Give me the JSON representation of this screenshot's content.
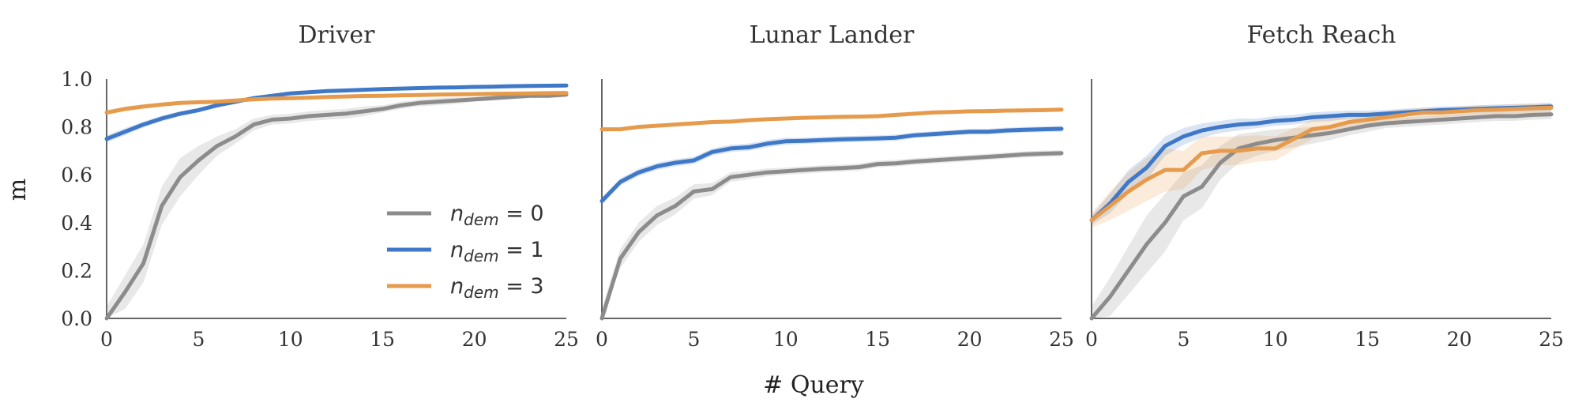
{
  "chart_data": {
    "type": "line",
    "xlabel": "# Query",
    "ylabel": "m",
    "x": [
      0,
      1,
      2,
      3,
      4,
      5,
      6,
      7,
      8,
      9,
      10,
      11,
      12,
      13,
      14,
      15,
      16,
      17,
      18,
      19,
      20,
      21,
      22,
      23,
      24,
      25
    ],
    "xlim": [
      0,
      25
    ],
    "ylim": [
      0,
      1.0
    ],
    "xticks": [
      "0",
      "5",
      "10",
      "15",
      "20",
      "25"
    ],
    "yticks": [
      "0.0",
      "0.2",
      "0.4",
      "0.6",
      "0.8",
      "1.0"
    ],
    "grid": false,
    "legend": {
      "placement": "inside lower-right of first panel",
      "entries": [
        {
          "symbol": "n",
          "subscript": "dem",
          "text": " = 0",
          "color": "#8c8c8c"
        },
        {
          "symbol": "n",
          "subscript": "dem",
          "text": " = 1",
          "color": "#3f78c7"
        },
        {
          "symbol": "n",
          "subscript": "dem",
          "text": " = 3",
          "color": "#e69a4b"
        }
      ]
    },
    "panels": [
      {
        "title": "Driver",
        "series": [
          {
            "name": "n_dem = 0",
            "color": "#8c8c8c",
            "values": [
              0.0,
              0.11,
              0.23,
              0.47,
              0.59,
              0.66,
              0.72,
              0.76,
              0.81,
              0.83,
              0.835,
              0.845,
              0.85,
              0.855,
              0.865,
              0.875,
              0.89,
              0.9,
              0.905,
              0.91,
              0.915,
              0.92,
              0.925,
              0.93,
              0.93,
              0.935
            ],
            "band": [
              0.05,
              0.07,
              0.08,
              0.08,
              0.08,
              0.06,
              0.04,
              0.03,
              0.025,
              0.02,
              0.02,
              0.02,
              0.02,
              0.02,
              0.02,
              0.015,
              0.015,
              0.015,
              0.015,
              0.015,
              0.01,
              0.01,
              0.01,
              0.01,
              0.01,
              0.01
            ]
          },
          {
            "name": "n_dem = 1",
            "color": "#3f78c7",
            "values": [
              0.75,
              0.78,
              0.81,
              0.835,
              0.855,
              0.87,
              0.89,
              0.905,
              0.92,
              0.93,
              0.94,
              0.945,
              0.95,
              0.952,
              0.955,
              0.958,
              0.96,
              0.962,
              0.964,
              0.965,
              0.967,
              0.968,
              0.97,
              0.971,
              0.972,
              0.973
            ],
            "band": [
              0.015,
              0.015,
              0.012,
              0.012,
              0.01,
              0.01,
              0.01,
              0.01,
              0.008,
              0.008,
              0.008,
              0.008,
              0.006,
              0.006,
              0.006,
              0.006,
              0.006,
              0.006,
              0.005,
              0.005,
              0.005,
              0.005,
              0.005,
              0.005,
              0.005,
              0.005
            ]
          },
          {
            "name": "n_dem = 3",
            "color": "#e69a4b",
            "values": [
              0.86,
              0.875,
              0.885,
              0.893,
              0.9,
              0.903,
              0.905,
              0.91,
              0.915,
              0.918,
              0.92,
              0.922,
              0.925,
              0.927,
              0.929,
              0.93,
              0.932,
              0.933,
              0.935,
              0.936,
              0.937,
              0.938,
              0.939,
              0.94,
              0.941,
              0.942
            ],
            "band": [
              0.01,
              0.01,
              0.01,
              0.008,
              0.008,
              0.008,
              0.008,
              0.006,
              0.006,
              0.006,
              0.006,
              0.006,
              0.005,
              0.005,
              0.005,
              0.005,
              0.005,
              0.005,
              0.005,
              0.005,
              0.005,
              0.005,
              0.005,
              0.005,
              0.005,
              0.005
            ]
          }
        ]
      },
      {
        "title": "Lunar Lander",
        "series": [
          {
            "name": "n_dem = 0",
            "color": "#8c8c8c",
            "values": [
              0.0,
              0.25,
              0.36,
              0.43,
              0.47,
              0.53,
              0.54,
              0.59,
              0.6,
              0.61,
              0.615,
              0.62,
              0.625,
              0.628,
              0.632,
              0.645,
              0.648,
              0.655,
              0.66,
              0.665,
              0.67,
              0.675,
              0.68,
              0.685,
              0.688,
              0.69
            ],
            "band": [
              0.04,
              0.04,
              0.04,
              0.04,
              0.035,
              0.03,
              0.025,
              0.02,
              0.018,
              0.016,
              0.015,
              0.015,
              0.015,
              0.015,
              0.015,
              0.014,
              0.014,
              0.014,
              0.014,
              0.014,
              0.013,
              0.013,
              0.013,
              0.013,
              0.013,
              0.013
            ]
          },
          {
            "name": "n_dem = 1",
            "color": "#3f78c7",
            "values": [
              0.49,
              0.57,
              0.61,
              0.635,
              0.65,
              0.66,
              0.695,
              0.71,
              0.715,
              0.73,
              0.74,
              0.742,
              0.745,
              0.748,
              0.75,
              0.752,
              0.755,
              0.765,
              0.77,
              0.775,
              0.78,
              0.78,
              0.785,
              0.788,
              0.79,
              0.792
            ],
            "band": [
              0.015,
              0.015,
              0.015,
              0.015,
              0.015,
              0.015,
              0.015,
              0.015,
              0.015,
              0.015,
              0.015,
              0.013,
              0.013,
              0.013,
              0.013,
              0.013,
              0.013,
              0.012,
              0.012,
              0.012,
              0.012,
              0.012,
              0.012,
              0.012,
              0.012,
              0.012
            ]
          },
          {
            "name": "n_dem = 3",
            "color": "#e69a4b",
            "values": [
              0.79,
              0.79,
              0.8,
              0.805,
              0.81,
              0.815,
              0.82,
              0.822,
              0.828,
              0.832,
              0.835,
              0.838,
              0.84,
              0.842,
              0.843,
              0.845,
              0.85,
              0.855,
              0.86,
              0.862,
              0.865,
              0.866,
              0.868,
              0.869,
              0.87,
              0.872
            ],
            "band": [
              0.008,
              0.008,
              0.008,
              0.008,
              0.008,
              0.008,
              0.008,
              0.008,
              0.008,
              0.008,
              0.008,
              0.008,
              0.008,
              0.008,
              0.008,
              0.008,
              0.008,
              0.008,
              0.008,
              0.008,
              0.008,
              0.008,
              0.008,
              0.008,
              0.008,
              0.008
            ]
          }
        ]
      },
      {
        "title": "Fetch Reach",
        "series": [
          {
            "name": "n_dem = 0",
            "color": "#8c8c8c",
            "values": [
              0.0,
              0.09,
              0.2,
              0.31,
              0.4,
              0.51,
              0.55,
              0.65,
              0.71,
              0.73,
              0.745,
              0.755,
              0.765,
              0.775,
              0.79,
              0.805,
              0.815,
              0.82,
              0.825,
              0.83,
              0.835,
              0.84,
              0.845,
              0.845,
              0.85,
              0.852
            ],
            "band": [
              0.05,
              0.08,
              0.1,
              0.12,
              0.12,
              0.1,
              0.09,
              0.07,
              0.06,
              0.05,
              0.045,
              0.04,
              0.035,
              0.03,
              0.025,
              0.025,
              0.02,
              0.02,
              0.02,
              0.02,
              0.02,
              0.02,
              0.02,
              0.02,
              0.02,
              0.02
            ]
          },
          {
            "name": "n_dem = 1",
            "color": "#3f78c7",
            "values": [
              0.41,
              0.48,
              0.57,
              0.63,
              0.72,
              0.76,
              0.785,
              0.8,
              0.81,
              0.815,
              0.825,
              0.83,
              0.84,
              0.845,
              0.85,
              0.85,
              0.855,
              0.86,
              0.865,
              0.87,
              0.872,
              0.875,
              0.878,
              0.88,
              0.882,
              0.885
            ],
            "band": [
              0.02,
              0.04,
              0.05,
              0.05,
              0.04,
              0.035,
              0.03,
              0.025,
              0.025,
              0.02,
              0.02,
              0.02,
              0.02,
              0.02,
              0.018,
              0.018,
              0.016,
              0.016,
              0.015,
              0.015,
              0.015,
              0.015,
              0.015,
              0.015,
              0.015,
              0.015
            ]
          },
          {
            "name": "n_dem = 3",
            "color": "#e69a4b",
            "values": [
              0.41,
              0.47,
              0.53,
              0.58,
              0.62,
              0.62,
              0.69,
              0.7,
              0.7,
              0.71,
              0.71,
              0.75,
              0.79,
              0.8,
              0.82,
              0.83,
              0.84,
              0.85,
              0.86,
              0.86,
              0.865,
              0.87,
              0.872,
              0.875,
              0.878,
              0.88
            ],
            "band": [
              0.03,
              0.06,
              0.08,
              0.09,
              0.09,
              0.08,
              0.07,
              0.06,
              0.06,
              0.055,
              0.05,
              0.045,
              0.04,
              0.035,
              0.03,
              0.03,
              0.025,
              0.025,
              0.02,
              0.02,
              0.02,
              0.02,
              0.02,
              0.02,
              0.02,
              0.02
            ]
          }
        ]
      }
    ]
  }
}
